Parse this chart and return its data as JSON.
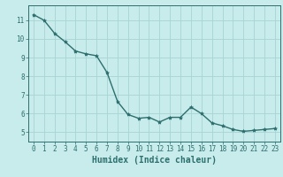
{
  "x": [
    0,
    1,
    2,
    3,
    4,
    5,
    6,
    7,
    8,
    9,
    10,
    11,
    12,
    13,
    14,
    15,
    16,
    17,
    18,
    19,
    20,
    21,
    22,
    23
  ],
  "y": [
    11.3,
    11.0,
    10.3,
    9.85,
    9.35,
    9.2,
    9.1,
    8.2,
    6.65,
    5.95,
    5.75,
    5.8,
    5.55,
    5.8,
    5.8,
    6.35,
    6.0,
    5.5,
    5.35,
    5.15,
    5.05,
    5.1,
    5.15,
    5.2
  ],
  "line_color": "#2d6e6e",
  "marker": "*",
  "marker_color": "#2d6e6e",
  "bg_color": "#c8ecec",
  "grid_color": "#a8d4d4",
  "xlabel": "Humidex (Indice chaleur)",
  "ylabel": "",
  "xlim": [
    -0.5,
    23.5
  ],
  "ylim": [
    4.5,
    11.8
  ],
  "yticks": [
    5,
    6,
    7,
    8,
    9,
    10,
    11
  ],
  "xticks": [
    0,
    1,
    2,
    3,
    4,
    5,
    6,
    7,
    8,
    9,
    10,
    11,
    12,
    13,
    14,
    15,
    16,
    17,
    18,
    19,
    20,
    21,
    22,
    23
  ],
  "font_color": "#2d6e6e",
  "tick_color": "#2d6e6e",
  "xlabel_fontsize": 7,
  "tick_fontsize": 5.5,
  "line_width": 1.0,
  "marker_size": 3
}
